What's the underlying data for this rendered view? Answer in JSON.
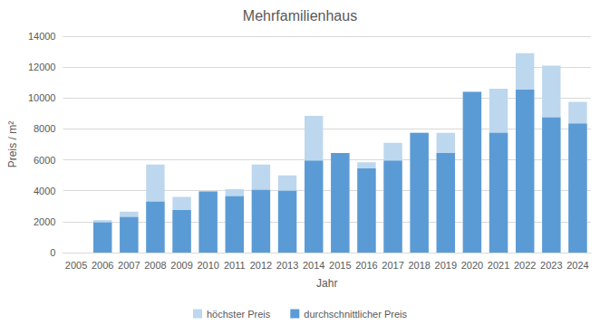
{
  "chart_data": {
    "type": "bar",
    "title": "Mehrfamilienhaus",
    "x_label": "Jahr",
    "y_label": "Preis / m²",
    "categories": [
      "2005",
      "2006",
      "2007",
      "2008",
      "2009",
      "2010",
      "2011",
      "2012",
      "2013",
      "2014",
      "2015",
      "2016",
      "2017",
      "2018",
      "2019",
      "2020",
      "2021",
      "2022",
      "2023",
      "2024"
    ],
    "series": [
      {
        "name": "höchster Preis",
        "color": "#bdd7ee",
        "values": [
          null,
          2100,
          2650,
          5700,
          3600,
          3950,
          4100,
          5700,
          5000,
          8850,
          6450,
          5850,
          7100,
          7750,
          7750,
          10400,
          10600,
          12900,
          12100,
          9750
        ]
      },
      {
        "name": "durchschnittlicher Preis",
        "color": "#5b9bd5",
        "values": [
          null,
          1950,
          2300,
          3300,
          2750,
          3950,
          3650,
          4050,
          4000,
          5950,
          6450,
          5450,
          5950,
          7750,
          6450,
          10400,
          7750,
          10550,
          8750,
          8350
        ]
      }
    ],
    "ylim": [
      0,
      14000
    ],
    "yticks": [
      0,
      2000,
      4000,
      6000,
      8000,
      10000,
      12000,
      14000
    ],
    "grid": true,
    "legend": "bottom"
  }
}
